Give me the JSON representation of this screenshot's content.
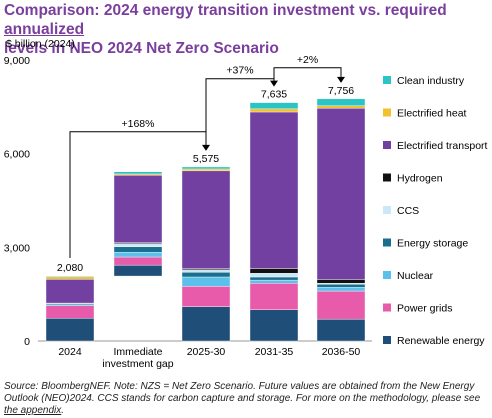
{
  "title": {
    "line1": "Comparison: 2024 energy transition investment vs. required",
    "highlight": "annualized",
    "line2": "levels in NEO 2024 Net Zero Scenario"
  },
  "footnote": {
    "text": "Source: BloombergNEF. Note: NZS = Net Zero Scenario. Future values are obtained from the New Energy Outlook (NEO)2024. CCS stands for carbon capture and storage. For more on the methodology, please see ",
    "link": "the appendix",
    "end": "."
  },
  "chart_data": {
    "type": "bar",
    "stacked": true,
    "ylabel": "$ billion (2024)",
    "ylim": [
      0,
      9000
    ],
    "yticks": [
      0,
      3000,
      6000,
      9000
    ],
    "ytick_labels": [
      "0",
      "3,000",
      "6,000",
      "9,000"
    ],
    "grid": false,
    "legend_position": "right",
    "categories": [
      "2024",
      "Immediate investment gap",
      "2025-30",
      "2031-35",
      "2036-50"
    ],
    "category_lines": [
      [
        "2024"
      ],
      [
        "Immediate",
        "investment gap"
      ],
      [
        "2025-30"
      ],
      [
        "2031-35"
      ],
      [
        "2036-50"
      ]
    ],
    "totals": [
      "2,080",
      "",
      "5,575",
      "7,635",
      "7,756"
    ],
    "series": [
      {
        "name": "Renewable energy",
        "color": "#1f4e79",
        "values": [
          730,
          350,
          1100,
          1000,
          700
        ]
      },
      {
        "name": "Power grids",
        "color": "#e85aaa",
        "values": [
          400,
          260,
          650,
          850,
          900
        ]
      },
      {
        "name": "Nuclear",
        "color": "#5bc0eb",
        "values": [
          30,
          150,
          300,
          100,
          120
        ]
      },
      {
        "name": "Energy storage",
        "color": "#1b6f8e",
        "values": [
          40,
          180,
          150,
          100,
          100
        ]
      },
      {
        "name": "CCS",
        "color": "#cbe8f6",
        "values": [
          10,
          100,
          80,
          120,
          30
        ]
      },
      {
        "name": "Hydrogen",
        "color": "#111111",
        "values": [
          5,
          30,
          40,
          150,
          120
        ]
      },
      {
        "name": "Electrified transport",
        "color": "#7140a0",
        "values": [
          760,
          2160,
          3130,
          5015,
          5486
        ]
      },
      {
        "name": "Electrified heat",
        "color": "#f2c12e",
        "values": [
          80,
          40,
          60,
          100,
          80
        ]
      },
      {
        "name": "Clean industry",
        "color": "#2bc4c4",
        "values": [
          25,
          70,
          65,
          200,
          220
        ]
      }
    ],
    "gap_bar_start": 2080,
    "annotations": [
      {
        "label": "+168%",
        "from": "2024",
        "to": "2025-30"
      },
      {
        "label": "+37%",
        "from": "2025-30",
        "to": "2031-35"
      },
      {
        "label": "+2%",
        "from": "2031-35",
        "to": "2036-50"
      }
    ]
  }
}
